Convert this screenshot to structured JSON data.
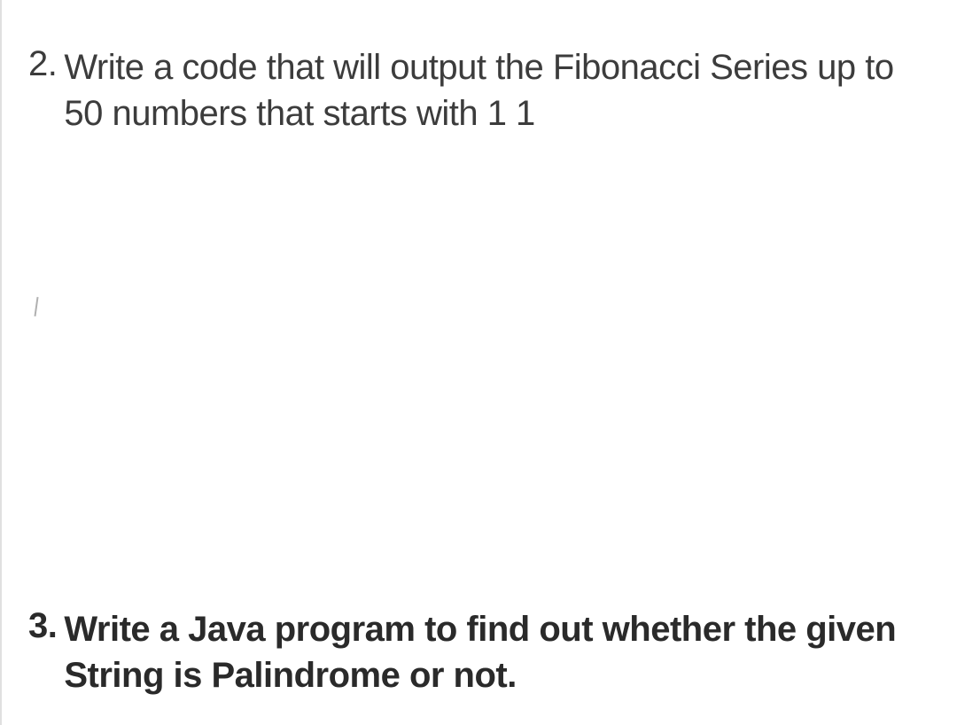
{
  "questions": [
    {
      "number": "2.",
      "text": "Write a code that will output the Fibonacci Series up to 50 numbers that starts with 1 1",
      "bold": false
    },
    {
      "number": "3.",
      "text": "Write a Java program to find out whether the given String is Palindrome or not.",
      "bold": true
    }
  ],
  "styling": {
    "background_color": "#ffffff",
    "border_color": "#e0e0e0",
    "text_color_normal": "#3c3c3c",
    "text_color_bold": "#2a2a2a",
    "font_size": 40,
    "font_family": "Arial, Helvetica, sans-serif",
    "line_height": 1.3,
    "question_spacing": 560
  }
}
